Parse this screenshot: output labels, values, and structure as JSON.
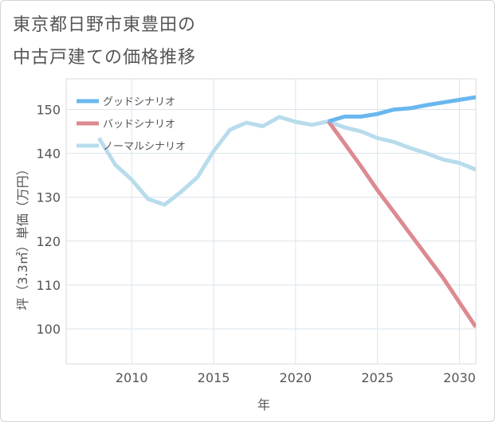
{
  "title_line1": "東京都日野市東豊田の",
  "title_line2": "中古戸建ての価格推移",
  "chart_data": {
    "type": "line",
    "xlabel": "年",
    "ylabel": "坪（3.3㎡）単価（万円）",
    "xlim": [
      2006,
      2031
    ],
    "ylim": [
      92,
      157
    ],
    "x_ticks": [
      2010,
      2015,
      2020,
      2025,
      2030
    ],
    "y_ticks": [
      100,
      110,
      120,
      130,
      140,
      150
    ],
    "grid": true,
    "legend_position": "top-left",
    "series": [
      {
        "name": "グッドシナリオ",
        "color": "#6ab7ee",
        "x": [
          2022,
          2023,
          2024,
          2025,
          2026,
          2027,
          2028,
          2029,
          2030,
          2031
        ],
        "y": [
          147.3,
          148.4,
          148.4,
          149.0,
          150.0,
          150.3,
          151.0,
          151.6,
          152.2,
          152.8
        ]
      },
      {
        "name": "バッドシナリオ",
        "color": "#dc8a90",
        "x": [
          2022,
          2023,
          2024,
          2025,
          2026,
          2027,
          2028,
          2029,
          2030,
          2031
        ],
        "y": [
          147.3,
          142.2,
          137.0,
          131.6,
          126.6,
          121.6,
          116.6,
          111.6,
          106.0,
          100.4
        ]
      },
      {
        "name": "ノーマルシナリオ",
        "color": "#b8dcec",
        "x": [
          2008,
          2009,
          2010,
          2011,
          2012,
          2013,
          2014,
          2015,
          2016,
          2017,
          2018,
          2019,
          2020,
          2021,
          2022,
          2023,
          2024,
          2025,
          2026,
          2027,
          2028,
          2029,
          2030,
          2031
        ],
        "y": [
          143.5,
          137.4,
          134.0,
          129.6,
          128.3,
          131.2,
          134.5,
          140.5,
          145.4,
          147.0,
          146.2,
          148.3,
          147.2,
          146.5,
          147.3,
          145.9,
          145.0,
          143.5,
          142.6,
          141.2,
          140.0,
          138.6,
          137.8,
          136.3
        ]
      }
    ]
  }
}
